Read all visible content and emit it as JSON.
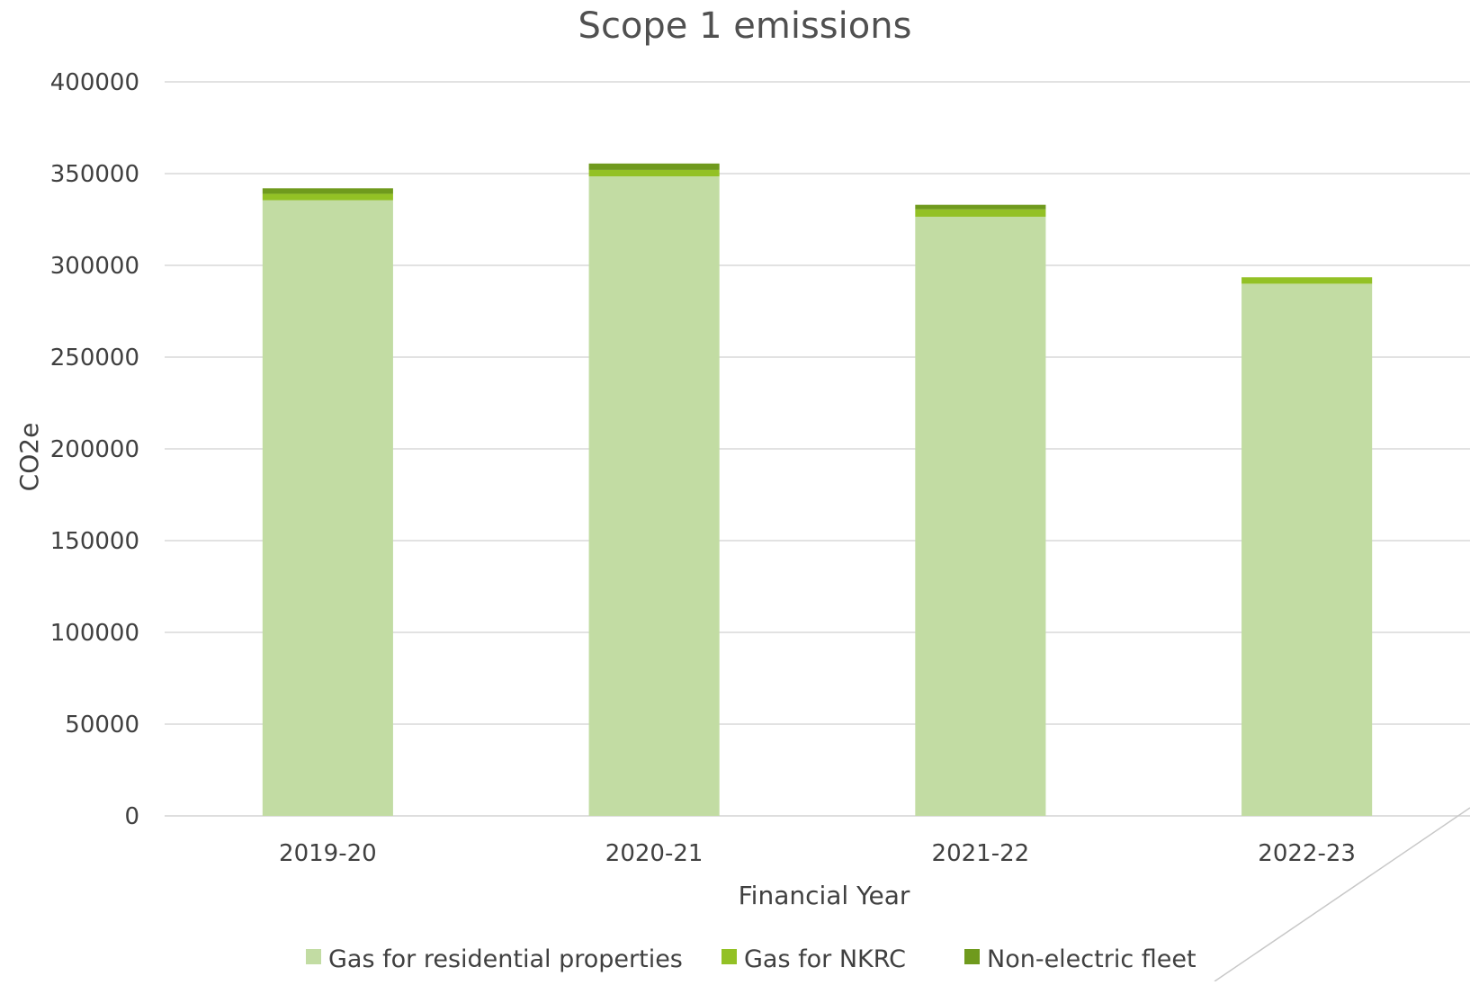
{
  "chart_data": {
    "type": "bar",
    "stacked": true,
    "title": "Scope 1 emissions",
    "xlabel": "Financial Year",
    "ylabel": "CO2e",
    "ylim": [
      0,
      400000
    ],
    "yticks": [
      0,
      50000,
      100000,
      150000,
      200000,
      250000,
      300000,
      350000,
      400000
    ],
    "ytick_labels": [
      "0",
      "50000",
      "100000",
      "150000",
      "200000",
      "250000",
      "300000",
      "350000",
      "400000"
    ],
    "grid": true,
    "legend_position": "bottom",
    "categories": [
      "2019-20",
      "2020-21",
      "2021-22",
      "2022-23"
    ],
    "series": [
      {
        "name": "Gas for residential properties",
        "color": "#c2dca3",
        "values": [
          335500,
          348500,
          326500,
          290000
        ]
      },
      {
        "name": "Gas for NKRC",
        "color": "#93c125",
        "values": [
          3500,
          3500,
          4000,
          3500
        ]
      },
      {
        "name": "Non-electric fleet",
        "color": "#6f9a1d",
        "values": [
          3000,
          3500,
          2500,
          0
        ]
      }
    ]
  }
}
